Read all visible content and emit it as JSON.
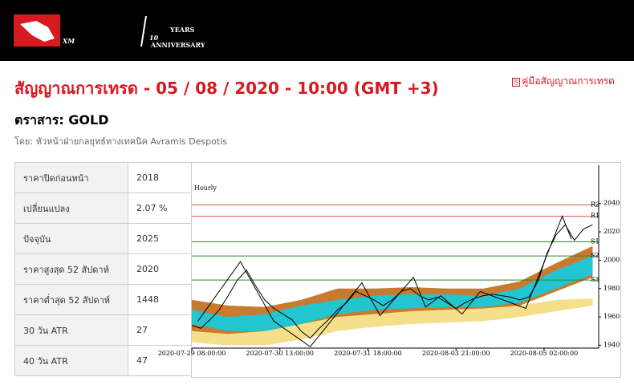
{
  "header": {
    "logo": "XM",
    "anniversary": "10",
    "years": "YEARS",
    "anniversary_label": "ANNIVERSARY"
  },
  "page": {
    "title": "สัญญาณการเทรด - 05 / 08 / 2020 - 10:00 (GMT +3)",
    "guide_link": "คู่มือสัญญาณการเทรด",
    "instrument": "ตราสาร: GOLD",
    "author": "โดย: หัวหน้าฝ่ายกลยุทธ์ทางเทคนิค Avramis Despotis"
  },
  "table": {
    "rows": [
      [
        "ราคาปิดก่อนหน้า",
        "2018"
      ],
      [
        "เปลี่ยนแปลง",
        "2.07 %"
      ],
      [
        "ปัจจุบัน",
        "2025"
      ],
      [
        "ราคาสูงสุด 52 สัปดาห์",
        "2020"
      ],
      [
        "ราคาต่ำสุด 52 สัปดาห์",
        "1448"
      ],
      [
        "30 วัน ATR",
        "27"
      ],
      [
        "40 วัน ATR",
        "47"
      ]
    ]
  },
  "chart_data": {
    "type": "line",
    "title": "Hourly",
    "xlim": [
      0,
      134
    ],
    "xticks": [
      {
        "value": 0,
        "label": "2020-07-29 08:00:00"
      },
      {
        "value": 29,
        "label": "2020-07-30 13:00:00"
      },
      {
        "value": 58,
        "label": "2020-07-31 18:00:00"
      },
      {
        "value": 87,
        "label": "2020-08-03 21:00:00"
      },
      {
        "value": 116,
        "label": "2020-08-05 02:00:00"
      }
    ],
    "ylim": [
      1938,
      2067
    ],
    "yticks": [
      1940,
      1960,
      1980,
      2000,
      2020,
      2040
    ],
    "levels": [
      {
        "label": "R2",
        "value": 2039,
        "color": "#d9534f"
      },
      {
        "label": "R1",
        "value": 2031,
        "color": "#d9534f"
      },
      {
        "label": "S1",
        "value": 2013,
        "color": "#2e8b2e"
      },
      {
        "label": "S2",
        "value": 2003,
        "color": "#2e8b2e"
      },
      {
        "label": "S3",
        "value": 1986,
        "color": "#2e8b2e"
      }
    ],
    "band_x": [
      0,
      12,
      24,
      36,
      48,
      60,
      72,
      84,
      96,
      108,
      120,
      132
    ],
    "bands": [
      {
        "color": "#c87a2e",
        "lower": [
          1950,
          1947,
          1946,
          1952,
          1958,
          1961,
          1963,
          1964,
          1964,
          1968,
          1978,
          1988
        ],
        "upper": [
          1972,
          1968,
          1967,
          1972,
          1980,
          1980,
          1981,
          1980,
          1980,
          1985,
          1998,
          2010
        ]
      },
      {
        "color": "#f5df8a",
        "lower": [
          1942,
          1940,
          1940,
          1944,
          1950,
          1953,
          1955,
          1956,
          1957,
          1960,
          1964,
          1968
        ],
        "upper": [
          1950,
          1948,
          1950,
          1955,
          1960,
          1962,
          1964,
          1965,
          1966,
          1968,
          1972,
          1973
        ]
      },
      {
        "color": "#22c5d0",
        "lower": [
          1955,
          1950,
          1950,
          1955,
          1962,
          1965,
          1966,
          1967,
          1967,
          1970,
          1980,
          1990
        ],
        "upper": [
          1965,
          1960,
          1962,
          1968,
          1972,
          1975,
          1976,
          1976,
          1975,
          1980,
          1993,
          2003
        ]
      }
    ],
    "price": {
      "color": "#000000",
      "x": [
        0,
        3,
        6,
        9,
        12,
        15,
        18,
        21,
        24,
        27,
        30,
        33,
        36,
        39,
        42,
        45,
        48,
        51,
        54,
        57,
        60,
        63,
        66,
        69,
        72,
        75,
        78,
        81,
        84,
        87,
        90,
        93,
        96,
        99,
        102,
        105,
        108,
        111,
        114,
        117,
        120,
        123,
        126,
        129,
        132
      ],
      "values": [
        1954,
        1952,
        1958,
        1965,
        1975,
        1986,
        1993,
        1982,
        1972,
        1966,
        1962,
        1958,
        1950,
        1945,
        1952,
        1958,
        1965,
        1970,
        1978,
        1975,
        1972,
        1968,
        1972,
        1978,
        1980,
        1975,
        1972,
        1974,
        1970,
        1966,
        1970,
        1973,
        1975,
        1976,
        1975,
        1974,
        1972,
        1974,
        1985,
        2005,
        2018,
        2025,
        2014,
        2022,
        2025
      ]
    },
    "zigzag": {
      "color": "#000000",
      "x": [
        2,
        16,
        27,
        39,
        56,
        62,
        73,
        77,
        82,
        89,
        95,
        110,
        122,
        125
      ],
      "values": [
        1957,
        1999,
        1957,
        1939,
        1984,
        1961,
        1988,
        1967,
        1975,
        1962,
        1978,
        1966,
        2031,
        2015
      ]
    }
  }
}
